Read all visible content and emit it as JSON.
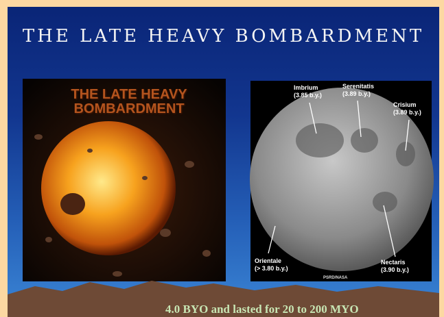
{
  "slide": {
    "title": "THE LATE HEAVY BOMBARDMENT",
    "left_image": {
      "caption": "THE LATE HEAVY BOMBARDMENT"
    },
    "right_image": {
      "labels": [
        {
          "name": "Imbrium",
          "age": "(3.85 b.y.)"
        },
        {
          "name": "Serenitatis",
          "age": "(3.89 b.y.)"
        },
        {
          "name": "Crisium",
          "age": "(3.89 b.y.)"
        },
        {
          "name": "Orientale",
          "age": "(> 3.80 b.y.)"
        },
        {
          "name": "Nectaris",
          "age": "(3.90 b.y.)"
        }
      ],
      "credit": "PSRD/NASA"
    },
    "footer": "4.0 BYO and lasted for 20 to 200 MYO"
  }
}
